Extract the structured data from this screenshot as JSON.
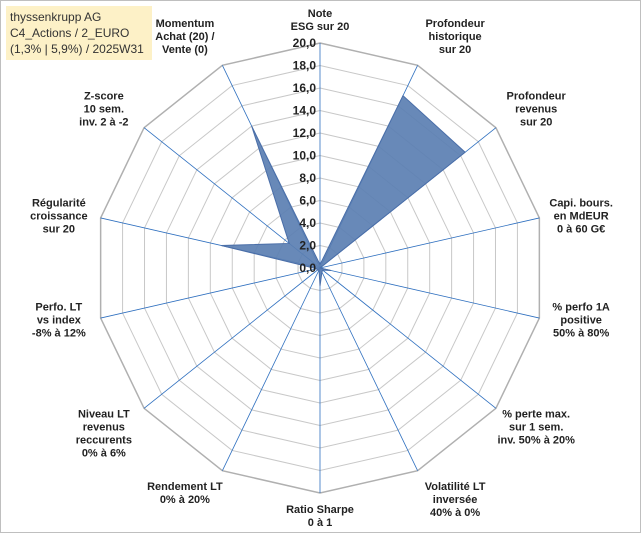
{
  "info": {
    "line1": "thyssenkrupp AG",
    "line2": "C4_Actions / 2_EURO",
    "line3": "(1,3% | 5,9%) / 2025W31"
  },
  "chart_data": {
    "type": "radar",
    "rmax": 20,
    "tick_step": 2,
    "ticks": [
      "0,0",
      "2,0",
      "4,0",
      "6,0",
      "8,0",
      "10,0",
      "12,0",
      "14,0",
      "16,0",
      "18,0",
      "20,0"
    ],
    "categories": [
      [
        "Note",
        "ESG sur 20"
      ],
      [
        "Profondeur",
        "historique",
        "sur 20"
      ],
      [
        "Profondeur",
        "revenus",
        "sur 20"
      ],
      [
        "Capi. bours.",
        "en MdEUR",
        "0 à 60 G€"
      ],
      [
        "% perfo 1A",
        "positive",
        "50% à 80%"
      ],
      [
        "% perte max.",
        "sur 1 sem.",
        "inv. 50% à 20%"
      ],
      [
        "Volatilité LT",
        "inversée",
        "40% à 0%"
      ],
      [
        "Ratio Sharpe",
        "0 à 1"
      ],
      [
        "Rendement LT",
        "0% à 20%"
      ],
      [
        "Niveau LT",
        "revenus",
        "reccurents",
        "0% à 6%"
      ],
      [
        "Perfo. LT",
        "vs index",
        "-8% à 12%"
      ],
      [
        "Régularité",
        "croissance",
        "sur 20"
      ],
      [
        "Z-score",
        "10 sem.",
        "inv. 2 à -2"
      ],
      [
        "Momentum",
        "Achat (20) /",
        "Vente (0)"
      ]
    ],
    "values": [
      0.3,
      17.0,
      16.5,
      0.0,
      1.0,
      0.3,
      0.4,
      1.6,
      0.2,
      0.3,
      0.3,
      9.0,
      3.5,
      14.0
    ],
    "fill_color": "#5b7fb2",
    "line_color": "#4a6ea8",
    "grid_color": "#c8c8c8",
    "spoke_color": "#2e6fbf",
    "grid": true,
    "legend": "none"
  }
}
